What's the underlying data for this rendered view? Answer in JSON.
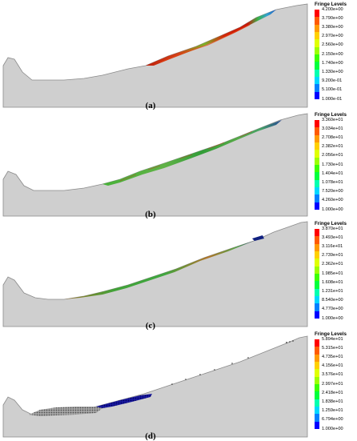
{
  "legend_title": "Fringe Levels",
  "colors": {
    "terrain_fill": "#cfcfcf",
    "terrain_stroke": "#8a8a8a",
    "scale": [
      "#ff0000",
      "#ff5a00",
      "#ff9a00",
      "#ffd000",
      "#e0ff00",
      "#9cff00",
      "#3cff00",
      "#00ff3c",
      "#00ffb0",
      "#00d8ff",
      "#0080ff",
      "#0000ff"
    ]
  },
  "panels": [
    {
      "caption": "(a)",
      "levels": [
        "4.200e+00",
        "3.790e+00",
        "3.380e+00",
        "2.970e+00",
        "2.560e+00",
        "2.150e+00",
        "1.740e+00",
        "1.330e+00",
        "9.200e-01",
        "5.100e-01",
        "1.000e-01"
      ]
    },
    {
      "caption": "(b)",
      "levels": [
        "3.360e+01",
        "3.034e+01",
        "2.708e+01",
        "2.382e+01",
        "2.056e+01",
        "1.730e+01",
        "1.404e+01",
        "1.078e+01",
        "7.520e+00",
        "4.260e+00",
        "1.000e+00"
      ]
    },
    {
      "caption": "(c)",
      "levels": [
        "3.870e+01",
        "3.493e+01",
        "3.116e+01",
        "2.739e+01",
        "2.362e+01",
        "1.985e+01",
        "1.608e+01",
        "1.231e+01",
        "8.540e+00",
        "4.770e+00",
        "1.000e+00"
      ]
    },
    {
      "caption": "(d)",
      "levels": [
        "5.894e+01",
        "5.315e+01",
        "4.735e+01",
        "4.156e+01",
        "3.576e+01",
        "2.997e+01",
        "2.418e+01",
        "1.838e+01",
        "1.259e+01",
        "6.794e+00",
        "1.000e+00"
      ]
    }
  ]
}
